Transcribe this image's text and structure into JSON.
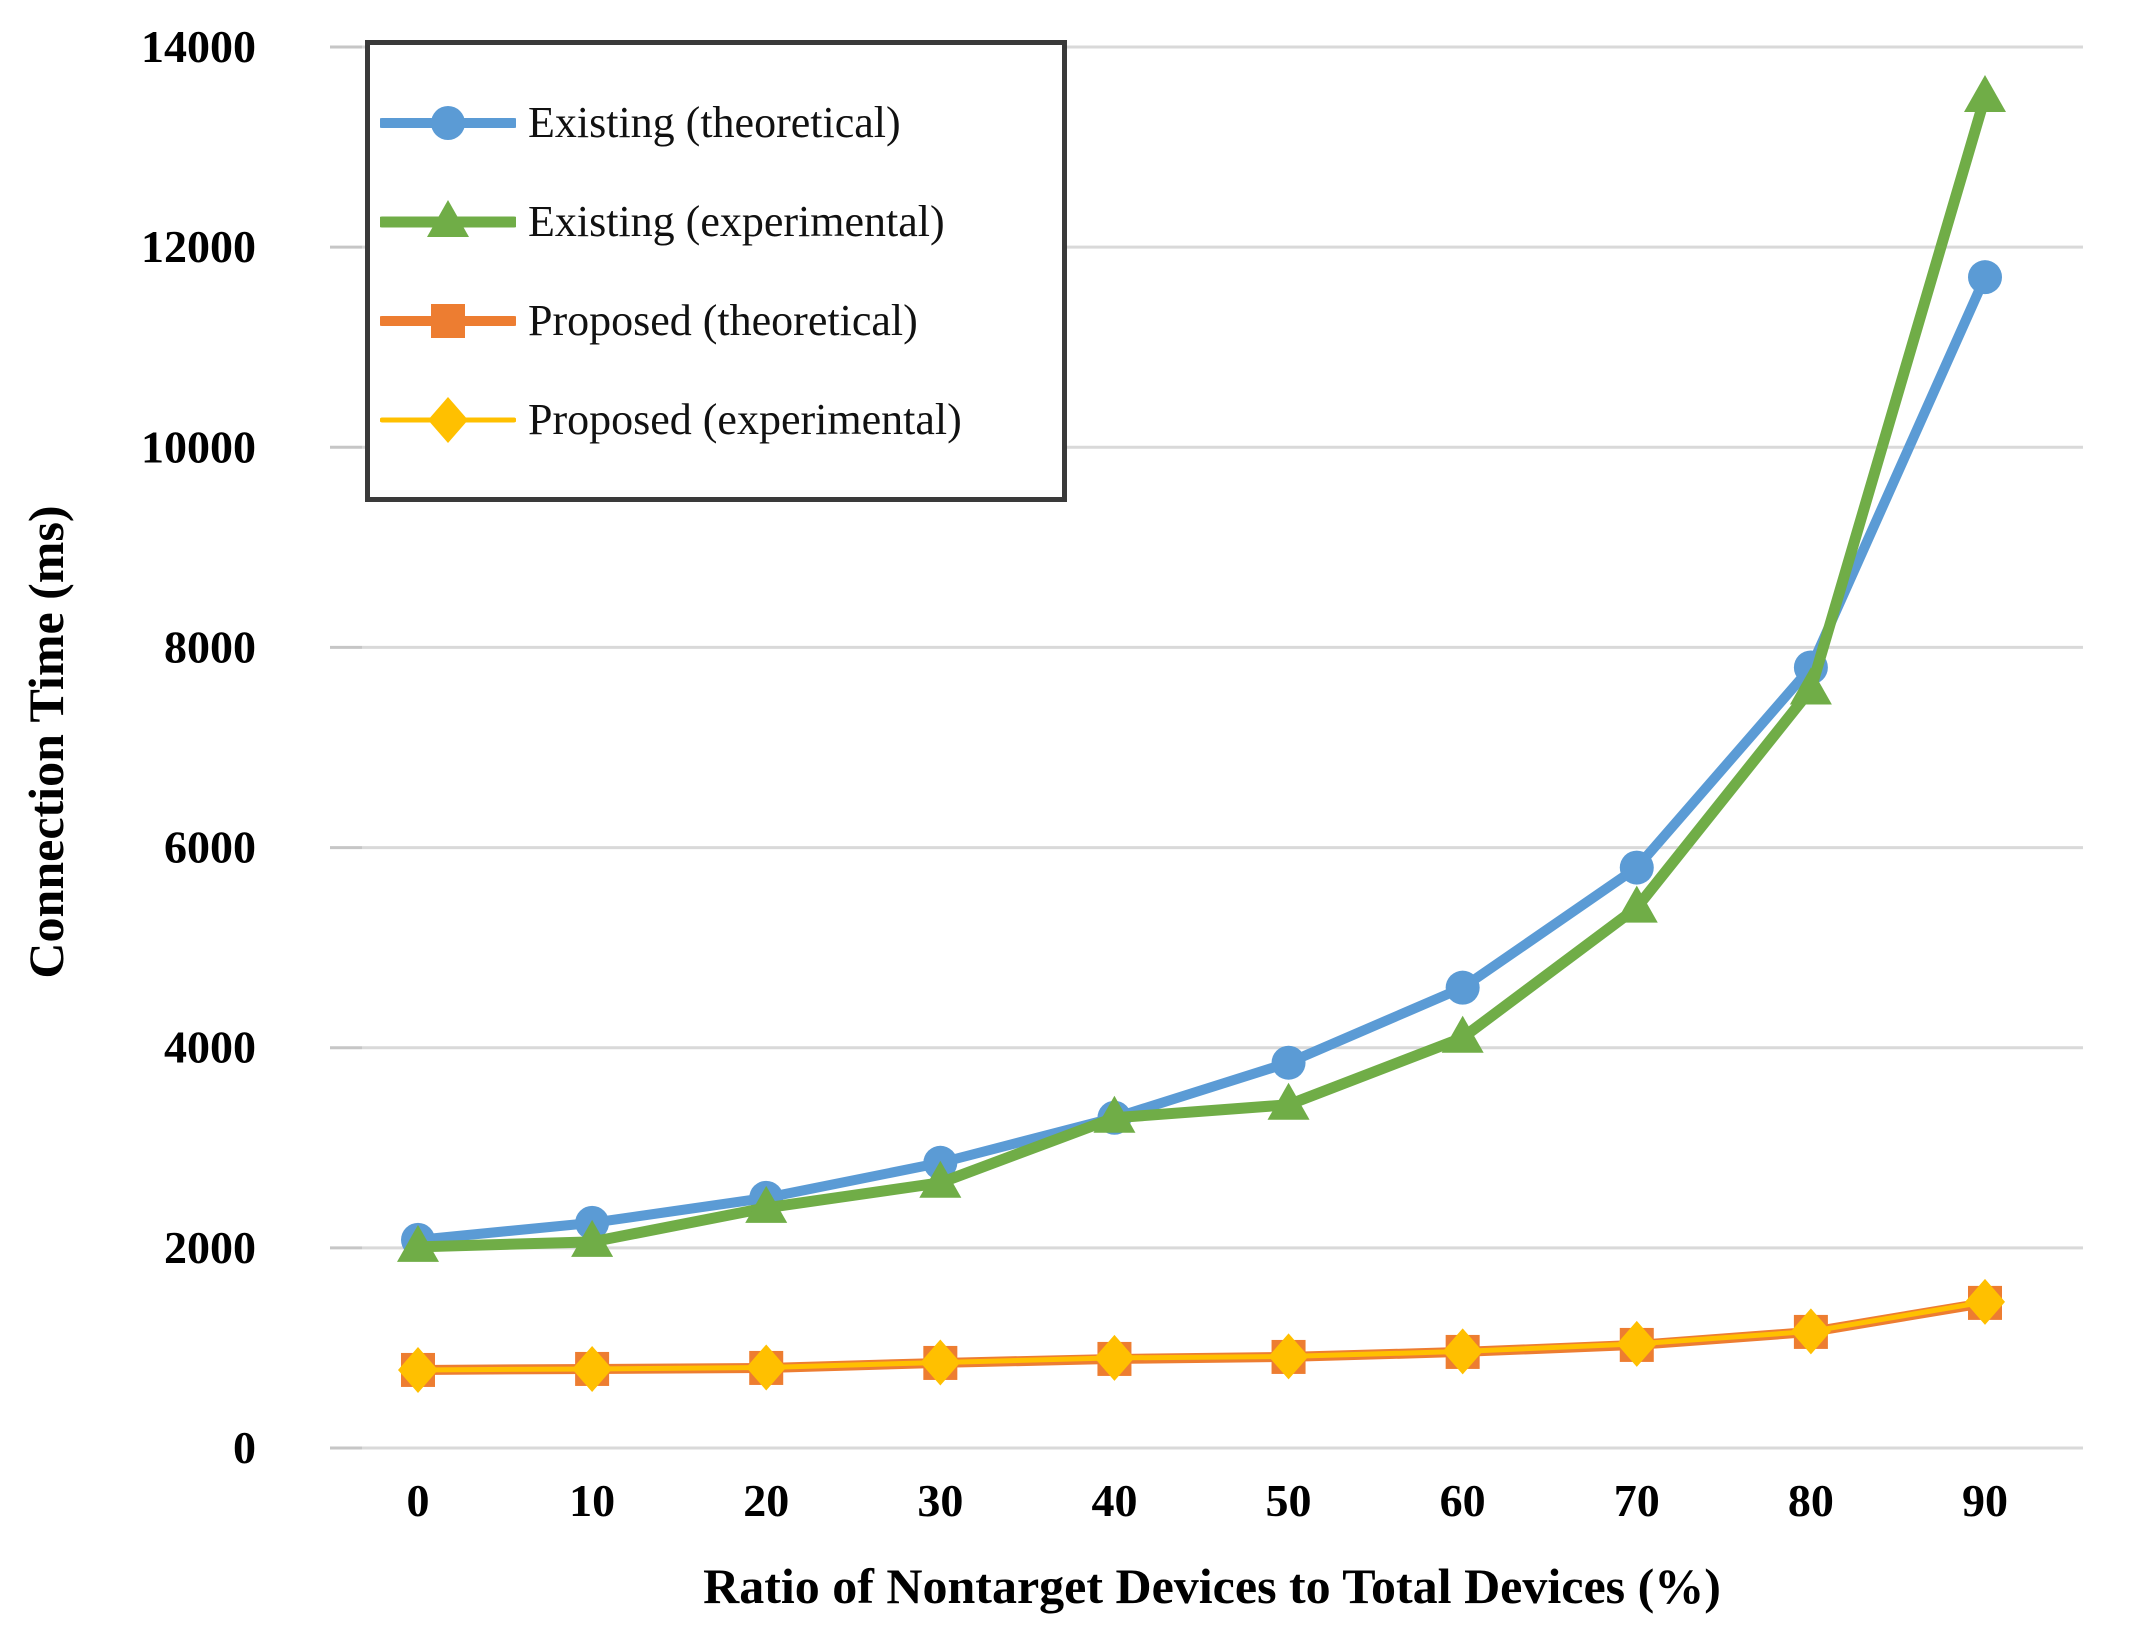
{
  "chart_data": {
    "type": "line",
    "title": "",
    "xlabel": "Ratio of Nontarget Devices to Total Devices (%)",
    "ylabel": "Connection Time (ms)",
    "x": [
      0,
      10,
      20,
      30,
      40,
      50,
      60,
      70,
      80,
      90
    ],
    "ylim": [
      0,
      14000
    ],
    "ytick_step": 2000,
    "yticks": [
      0,
      2000,
      4000,
      6000,
      8000,
      10000,
      12000,
      14000
    ],
    "grid": "horizontal",
    "legend_position": "top-left",
    "series": [
      {
        "name": "Existing (theoretical)",
        "color": "#5B9BD5",
        "marker": "circle",
        "line_width": 10,
        "values": [
          2080,
          2250,
          2500,
          2850,
          3300,
          3850,
          4600,
          5800,
          7800,
          11700
        ]
      },
      {
        "name": "Existing (experimental)",
        "color": "#70AD47",
        "marker": "triangle",
        "line_width": 11,
        "values": [
          2010,
          2060,
          2400,
          2650,
          3300,
          3430,
          4100,
          5400,
          7580,
          13500
        ]
      },
      {
        "name": "Proposed (theoretical)",
        "color": "#ED7D31",
        "marker": "square",
        "line_width": 10,
        "values": [
          780,
          790,
          800,
          850,
          890,
          910,
          960,
          1030,
          1160,
          1450
        ]
      },
      {
        "name": "Proposed (experimental)",
        "color": "#FFC000",
        "marker": "diamond",
        "line_width": 5,
        "values": [
          780,
          790,
          805,
          855,
          900,
          915,
          965,
          1040,
          1165,
          1460
        ]
      }
    ],
    "colors": {
      "gridline": "#D9D9D9",
      "tick": "#C6C6C6",
      "text": "#000000",
      "legend_border": "#3A3A3A",
      "background": "#FFFFFF"
    }
  }
}
